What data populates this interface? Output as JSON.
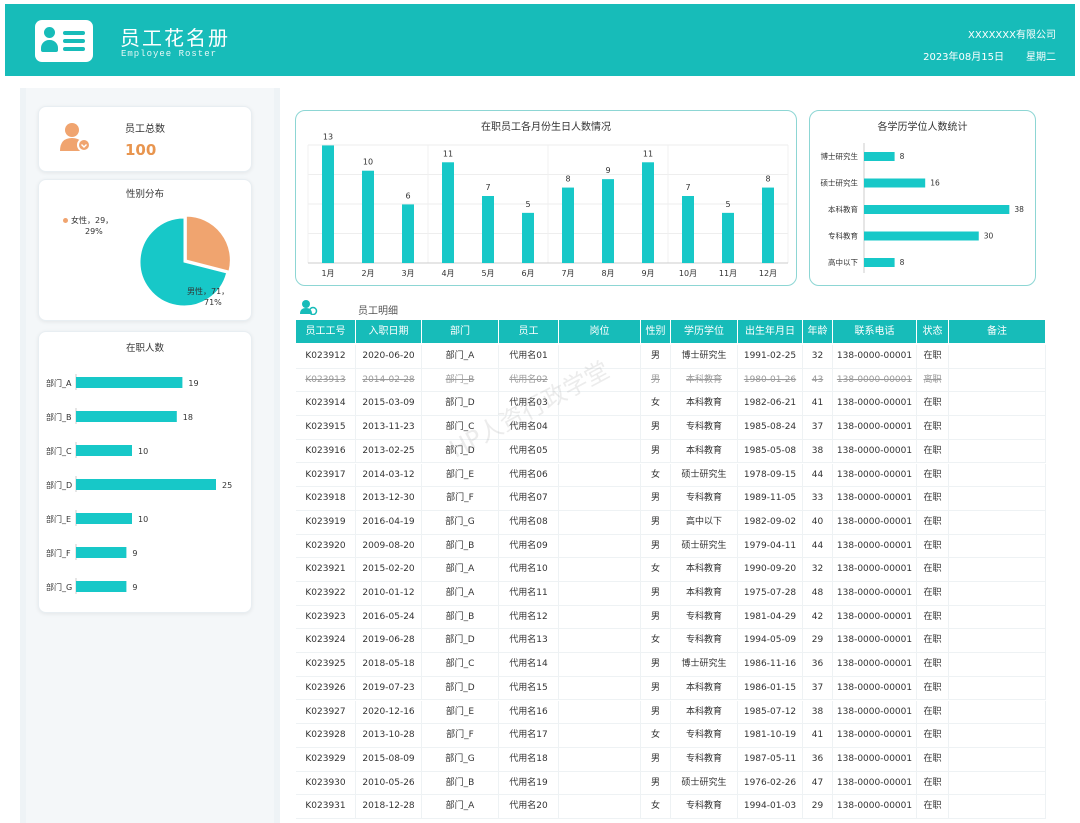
{
  "header": {
    "title": "员工花名册",
    "subtitle": "Employee Roster",
    "company": "XXXXXXX有限公司",
    "date": "2023年08月15日",
    "weekday": "星期二"
  },
  "total": {
    "label": "员工总数",
    "value": "100"
  },
  "gender": {
    "title": "性别分布",
    "female_label": "女性，29，",
    "female_pct": "29%",
    "male_label": "男性，71，",
    "male_pct": "71%"
  },
  "dept": {
    "title": "在职人数"
  },
  "monthly": {
    "title": "在职员工各月份生日人数情况"
  },
  "education": {
    "title": "各学历学位人数统计"
  },
  "detail": {
    "title": "员工明细"
  },
  "watermark": "HP人资行政学堂",
  "colors": {
    "accent": "#17bcb9",
    "female": "#f0a46f",
    "male": "#17c8c8",
    "icon_orange": "#f0a46f"
  },
  "chart_data": [
    {
      "type": "pie",
      "title": "性别分布",
      "labels": [
        "女性",
        "男性"
      ],
      "values": [
        29,
        71
      ]
    },
    {
      "type": "bar",
      "orientation": "horizontal",
      "title": "在职人数",
      "categories": [
        "部门_A",
        "部门_B",
        "部门_C",
        "部门_D",
        "部门_E",
        "部门_F",
        "部门_G"
      ],
      "values": [
        19,
        18,
        10,
        25,
        10,
        9,
        9
      ]
    },
    {
      "type": "bar",
      "title": "在职员工各月份生日人数情况",
      "categories": [
        "1月",
        "2月",
        "3月",
        "4月",
        "5月",
        "6月",
        "7月",
        "8月",
        "9月",
        "10月",
        "11月",
        "12月"
      ],
      "values": [
        13,
        10,
        6,
        11,
        7,
        5,
        8,
        9,
        11,
        7,
        5,
        8
      ],
      "ylim": [
        0,
        14
      ],
      "grid": true
    },
    {
      "type": "bar",
      "orientation": "horizontal",
      "title": "各学历学位人数统计",
      "categories": [
        "博士研究生",
        "硕士研究生",
        "本科教育",
        "专科教育",
        "高中以下"
      ],
      "values": [
        8,
        16,
        38,
        30,
        8
      ],
      "xlim": [
        0,
        40
      ]
    }
  ],
  "table": {
    "columns": [
      "员工工号",
      "入职日期",
      "部门",
      "员工",
      "岗位",
      "性别",
      "学历学位",
      "出生年月日",
      "年龄",
      "联系电话",
      "状态",
      "备注"
    ],
    "rows": [
      [
        "K023912",
        "2020-06-20",
        "部门_A",
        "代用名01",
        "",
        "男",
        "博士研究生",
        "1991-02-25",
        "32",
        "138-0000-00001",
        "在职",
        ""
      ],
      [
        "K023913",
        "2014-02-28",
        "部门_B",
        "代用名02",
        "",
        "男",
        "本科教育",
        "1980-01-26",
        "43",
        "138-0000-00001",
        "离职",
        ""
      ],
      [
        "K023914",
        "2015-03-09",
        "部门_D",
        "代用名03",
        "",
        "女",
        "本科教育",
        "1982-06-21",
        "41",
        "138-0000-00001",
        "在职",
        ""
      ],
      [
        "K023915",
        "2013-11-23",
        "部门_C",
        "代用名04",
        "",
        "男",
        "专科教育",
        "1985-08-24",
        "37",
        "138-0000-00001",
        "在职",
        ""
      ],
      [
        "K023916",
        "2013-02-25",
        "部门_D",
        "代用名05",
        "",
        "男",
        "本科教育",
        "1985-05-08",
        "38",
        "138-0000-00001",
        "在职",
        ""
      ],
      [
        "K023917",
        "2014-03-12",
        "部门_E",
        "代用名06",
        "",
        "女",
        "硕士研究生",
        "1978-09-15",
        "44",
        "138-0000-00001",
        "在职",
        ""
      ],
      [
        "K023918",
        "2013-12-30",
        "部门_F",
        "代用名07",
        "",
        "男",
        "专科教育",
        "1989-11-05",
        "33",
        "138-0000-00001",
        "在职",
        ""
      ],
      [
        "K023919",
        "2016-04-19",
        "部门_G",
        "代用名08",
        "",
        "男",
        "高中以下",
        "1982-09-02",
        "40",
        "138-0000-00001",
        "在职",
        ""
      ],
      [
        "K023920",
        "2009-08-20",
        "部门_B",
        "代用名09",
        "",
        "男",
        "硕士研究生",
        "1979-04-11",
        "44",
        "138-0000-00001",
        "在职",
        ""
      ],
      [
        "K023921",
        "2015-02-20",
        "部门_A",
        "代用名10",
        "",
        "女",
        "本科教育",
        "1990-09-20",
        "32",
        "138-0000-00001",
        "在职",
        ""
      ],
      [
        "K023922",
        "2010-01-12",
        "部门_A",
        "代用名11",
        "",
        "男",
        "本科教育",
        "1975-07-28",
        "48",
        "138-0000-00001",
        "在职",
        ""
      ],
      [
        "K023923",
        "2016-05-24",
        "部门_B",
        "代用名12",
        "",
        "男",
        "专科教育",
        "1981-04-29",
        "42",
        "138-0000-00001",
        "在职",
        ""
      ],
      [
        "K023924",
        "2019-06-28",
        "部门_D",
        "代用名13",
        "",
        "女",
        "专科教育",
        "1994-05-09",
        "29",
        "138-0000-00001",
        "在职",
        ""
      ],
      [
        "K023925",
        "2018-05-18",
        "部门_C",
        "代用名14",
        "",
        "男",
        "博士研究生",
        "1986-11-16",
        "36",
        "138-0000-00001",
        "在职",
        ""
      ],
      [
        "K023926",
        "2019-07-23",
        "部门_D",
        "代用名15",
        "",
        "男",
        "本科教育",
        "1986-01-15",
        "37",
        "138-0000-00001",
        "在职",
        ""
      ],
      [
        "K023927",
        "2020-12-16",
        "部门_E",
        "代用名16",
        "",
        "男",
        "本科教育",
        "1985-07-12",
        "38",
        "138-0000-00001",
        "在职",
        ""
      ],
      [
        "K023928",
        "2013-10-28",
        "部门_F",
        "代用名17",
        "",
        "女",
        "专科教育",
        "1981-10-19",
        "41",
        "138-0000-00001",
        "在职",
        ""
      ],
      [
        "K023929",
        "2015-08-09",
        "部门_G",
        "代用名18",
        "",
        "男",
        "专科教育",
        "1987-05-11",
        "36",
        "138-0000-00001",
        "在职",
        ""
      ],
      [
        "K023930",
        "2010-05-26",
        "部门_B",
        "代用名19",
        "",
        "男",
        "硕士研究生",
        "1976-02-26",
        "47",
        "138-0000-00001",
        "在职",
        ""
      ],
      [
        "K023931",
        "2018-12-28",
        "部门_A",
        "代用名20",
        "",
        "女",
        "专科教育",
        "1994-01-03",
        "29",
        "138-0000-00001",
        "在职",
        ""
      ]
    ]
  }
}
